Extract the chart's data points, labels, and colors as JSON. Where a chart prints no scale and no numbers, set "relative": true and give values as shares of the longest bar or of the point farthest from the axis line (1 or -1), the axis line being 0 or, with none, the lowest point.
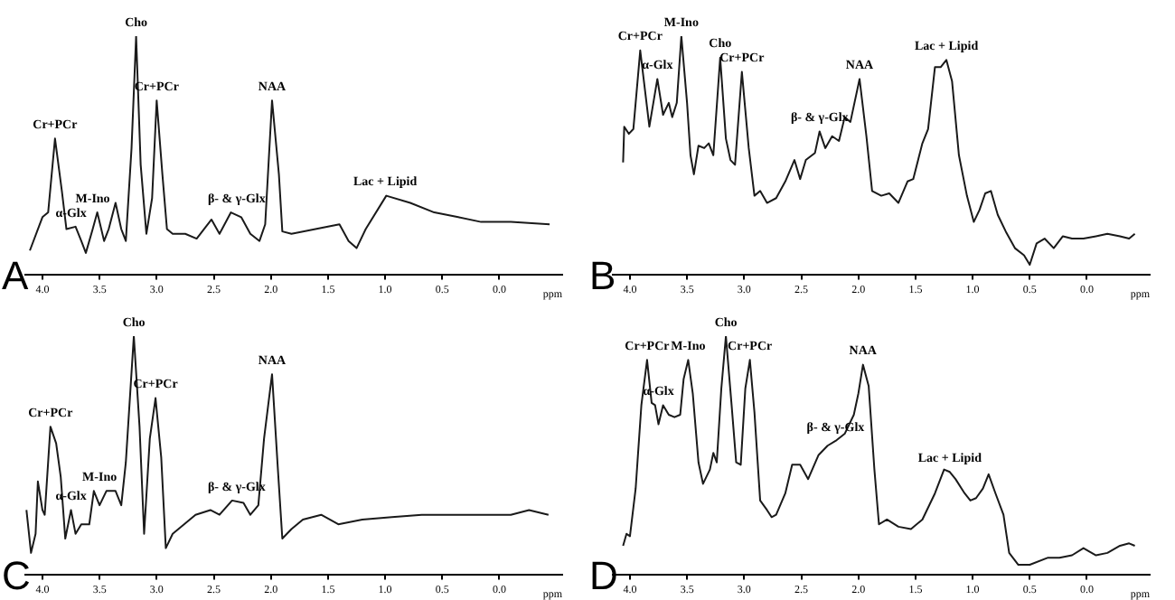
{
  "chart_data": [
    {
      "type": "line",
      "title": "A",
      "xlabel": "ppm",
      "relative": true,
      "marker": "none",
      "color": "#1a1a1a",
      "xlim": [
        4.15,
        -0.55
      ],
      "xticks": [
        {
          "value": 4,
          "label": "4.0"
        },
        {
          "value": 3.5,
          "label": "3.5"
        },
        {
          "value": 3,
          "label": "3.0"
        },
        {
          "value": 2.5,
          "label": "2.5"
        },
        {
          "value": 2,
          "label": "2.0"
        },
        {
          "value": 1.5,
          "label": "1.5"
        },
        {
          "value": 1,
          "label": "1.0"
        },
        {
          "value": 0.5,
          "label": "0.5"
        },
        {
          "value": 0,
          "label": "0.0"
        }
      ],
      "x": [
        4.11,
        4.0,
        3.95,
        3.89,
        3.83,
        3.79,
        3.71,
        3.66,
        3.62,
        3.56,
        3.52,
        3.46,
        3.42,
        3.36,
        3.31,
        3.27,
        3.22,
        3.18,
        3.14,
        3.09,
        3.04,
        3.0,
        2.95,
        2.91,
        2.86,
        2.75,
        2.65,
        2.52,
        2.45,
        2.35,
        2.26,
        2.18,
        2.1,
        2.05,
        1.99,
        1.93,
        1.9,
        1.82,
        1.61,
        1.4,
        1.32,
        1.25,
        1.17,
        0.99,
        0.78,
        0.57,
        0.36,
        0.16,
        -0.1,
        -0.44
      ],
      "values": [
        0.1,
        0.24,
        0.26,
        0.57,
        0.35,
        0.19,
        0.2,
        0.14,
        0.09,
        0.19,
        0.26,
        0.14,
        0.19,
        0.3,
        0.19,
        0.14,
        0.53,
        1.0,
        0.46,
        0.17,
        0.32,
        0.73,
        0.42,
        0.19,
        0.17,
        0.17,
        0.15,
        0.23,
        0.17,
        0.26,
        0.24,
        0.17,
        0.14,
        0.21,
        0.73,
        0.42,
        0.18,
        0.17,
        0.19,
        0.21,
        0.14,
        0.11,
        0.19,
        0.33,
        0.3,
        0.26,
        0.24,
        0.22,
        0.22,
        0.21
      ],
      "annotations": [
        {
          "text": "Cr+PCr",
          "x": 3.89,
          "y": 0.57
        },
        {
          "text": "α-Glx",
          "x": 3.75,
          "y": 0.2
        },
        {
          "text": "M-Ino",
          "x": 3.56,
          "y": 0.26
        },
        {
          "text": "Cho",
          "x": 3.18,
          "y": 1.0
        },
        {
          "text": "Cr+PCr",
          "x": 3.0,
          "y": 0.73
        },
        {
          "text": "β- & γ-Glx",
          "x": 2.3,
          "y": 0.26
        },
        {
          "text": "NAA",
          "x": 1.99,
          "y": 0.73
        },
        {
          "text": "Lac + Lipid",
          "x": 1.0,
          "y": 0.33
        }
      ]
    },
    {
      "type": "line",
      "title": "B",
      "xlabel": "ppm",
      "relative": true,
      "marker": "none",
      "color": "#1a1a1a",
      "xlim": [
        4.15,
        -0.55
      ],
      "xticks": [
        {
          "value": 4,
          "label": "4.0"
        },
        {
          "value": 3.5,
          "label": "3.5"
        },
        {
          "value": 3,
          "label": "3.0"
        },
        {
          "value": 2.5,
          "label": "2.5"
        },
        {
          "value": 2,
          "label": "2.0"
        },
        {
          "value": 1.5,
          "label": "1.5"
        },
        {
          "value": 1,
          "label": "1.0"
        },
        {
          "value": 0.5,
          "label": "0.5"
        },
        {
          "value": 0,
          "label": "0.0"
        }
      ],
      "x": [
        4.06,
        4.05,
        4.01,
        3.97,
        3.91,
        3.83,
        3.76,
        3.71,
        3.66,
        3.63,
        3.59,
        3.55,
        3.5,
        3.47,
        3.44,
        3.4,
        3.35,
        3.31,
        3.27,
        3.21,
        3.16,
        3.12,
        3.08,
        3.02,
        2.96,
        2.91,
        2.86,
        2.8,
        2.72,
        2.64,
        2.56,
        2.51,
        2.46,
        2.38,
        2.34,
        2.29,
        2.23,
        2.17,
        2.12,
        2.07,
        1.99,
        1.93,
        1.88,
        1.8,
        1.73,
        1.65,
        1.57,
        1.52,
        1.44,
        1.39,
        1.33,
        1.28,
        1.23,
        1.18,
        1.12,
        1.05,
        0.99,
        0.94,
        0.89,
        0.84,
        0.78,
        0.71,
        0.63,
        0.55,
        0.5,
        0.44,
        0.37,
        0.29,
        0.21,
        0.13,
        0.03,
        -0.08,
        -0.18,
        -0.29,
        -0.37,
        -0.42
      ],
      "values": [
        0.47,
        0.62,
        0.59,
        0.61,
        0.94,
        0.62,
        0.82,
        0.67,
        0.72,
        0.66,
        0.72,
        1.0,
        0.72,
        0.5,
        0.42,
        0.54,
        0.53,
        0.55,
        0.5,
        0.91,
        0.57,
        0.48,
        0.46,
        0.85,
        0.53,
        0.33,
        0.35,
        0.3,
        0.32,
        0.39,
        0.48,
        0.4,
        0.48,
        0.51,
        0.6,
        0.53,
        0.58,
        0.56,
        0.66,
        0.64,
        0.82,
        0.58,
        0.35,
        0.33,
        0.34,
        0.3,
        0.39,
        0.4,
        0.55,
        0.61,
        0.87,
        0.87,
        0.9,
        0.81,
        0.5,
        0.33,
        0.22,
        0.27,
        0.34,
        0.35,
        0.25,
        0.18,
        0.11,
        0.08,
        0.04,
        0.13,
        0.15,
        0.11,
        0.16,
        0.15,
        0.15,
        0.16,
        0.17,
        0.16,
        0.15,
        0.17
      ],
      "annotations": [
        {
          "text": "Cr+PCr",
          "x": 3.91,
          "y": 0.94
        },
        {
          "text": "α-Glx",
          "x": 3.76,
          "y": 0.82
        },
        {
          "text": "M-Ino",
          "x": 3.55,
          "y": 1.0
        },
        {
          "text": "Cho",
          "x": 3.21,
          "y": 0.91
        },
        {
          "text": "Cr+PCr",
          "x": 3.02,
          "y": 0.85
        },
        {
          "text": "β- & γ-Glx",
          "x": 2.34,
          "y": 0.6
        },
        {
          "text": "NAA",
          "x": 1.99,
          "y": 0.82
        },
        {
          "text": "Lac + Lipid",
          "x": 1.23,
          "y": 0.9
        }
      ]
    },
    {
      "type": "line",
      "title": "C",
      "xlabel": "ppm",
      "relative": true,
      "marker": "none",
      "color": "#1a1a1a",
      "xlim": [
        4.15,
        -0.55
      ],
      "xticks": [
        {
          "value": 4,
          "label": "4.0"
        },
        {
          "value": 3.5,
          "label": "3.5"
        },
        {
          "value": 3,
          "label": "3.0"
        },
        {
          "value": 2.5,
          "label": "2.5"
        },
        {
          "value": 2,
          "label": "2.0"
        },
        {
          "value": 1.5,
          "label": "1.5"
        },
        {
          "value": 1,
          "label": "1.0"
        },
        {
          "value": 0.5,
          "label": "0.5"
        },
        {
          "value": 0,
          "label": "0.0"
        }
      ],
      "x": [
        4.14,
        4.1,
        4.06,
        4.04,
        4.0,
        3.98,
        3.93,
        3.88,
        3.84,
        3.8,
        3.75,
        3.71,
        3.66,
        3.59,
        3.55,
        3.5,
        3.44,
        3.36,
        3.31,
        3.27,
        3.2,
        3.15,
        3.11,
        3.06,
        3.01,
        2.96,
        2.92,
        2.86,
        2.76,
        2.66,
        2.53,
        2.45,
        2.34,
        2.24,
        2.18,
        2.11,
        2.06,
        1.99,
        1.94,
        1.9,
        1.82,
        1.72,
        1.56,
        1.41,
        1.2,
        0.94,
        0.68,
        0.42,
        0.16,
        -0.1,
        -0.26,
        -0.43
      ],
      "values": [
        0.27,
        0.09,
        0.17,
        0.39,
        0.27,
        0.25,
        0.62,
        0.55,
        0.41,
        0.15,
        0.27,
        0.17,
        0.21,
        0.21,
        0.35,
        0.29,
        0.35,
        0.35,
        0.29,
        0.47,
        1.0,
        0.62,
        0.17,
        0.57,
        0.74,
        0.49,
        0.11,
        0.17,
        0.21,
        0.25,
        0.27,
        0.25,
        0.31,
        0.3,
        0.25,
        0.29,
        0.57,
        0.84,
        0.45,
        0.15,
        0.19,
        0.23,
        0.25,
        0.21,
        0.23,
        0.24,
        0.25,
        0.25,
        0.25,
        0.25,
        0.27,
        0.25
      ],
      "annotations": [
        {
          "text": "Cr+PCr",
          "x": 3.93,
          "y": 0.62
        },
        {
          "text": "α-Glx",
          "x": 3.75,
          "y": 0.27
        },
        {
          "text": "M-Ino",
          "x": 3.5,
          "y": 0.35
        },
        {
          "text": "Cho",
          "x": 3.2,
          "y": 1.0
        },
        {
          "text": "Cr+PCr",
          "x": 3.01,
          "y": 0.74
        },
        {
          "text": "β- & γ-Glx",
          "x": 2.3,
          "y": 0.31
        },
        {
          "text": "NAA",
          "x": 1.99,
          "y": 0.84
        }
      ]
    },
    {
      "type": "line",
      "title": "D",
      "xlabel": "ppm",
      "relative": true,
      "marker": "none",
      "color": "#1a1a1a",
      "xlim": [
        4.15,
        -0.55
      ],
      "xticks": [
        {
          "value": 4,
          "label": "4.0"
        },
        {
          "value": 3.5,
          "label": "3.5"
        },
        {
          "value": 3,
          "label": "3.0"
        },
        {
          "value": 2.5,
          "label": "2.5"
        },
        {
          "value": 2,
          "label": "2.0"
        },
        {
          "value": 1.5,
          "label": "1.5"
        },
        {
          "value": 1,
          "label": "1.0"
        },
        {
          "value": 0.5,
          "label": "0.5"
        },
        {
          "value": 0,
          "label": "0.0"
        }
      ],
      "x": [
        4.06,
        4.03,
        4.0,
        3.95,
        3.9,
        3.85,
        3.81,
        3.78,
        3.75,
        3.71,
        3.66,
        3.61,
        3.56,
        3.53,
        3.49,
        3.45,
        3.4,
        3.36,
        3.3,
        3.27,
        3.24,
        3.2,
        3.16,
        3.11,
        3.07,
        3.03,
        2.99,
        2.95,
        2.91,
        2.86,
        2.8,
        2.76,
        2.72,
        2.64,
        2.58,
        2.51,
        2.44,
        2.35,
        2.27,
        2.2,
        2.12,
        2.04,
        2.0,
        1.96,
        1.91,
        1.86,
        1.82,
        1.75,
        1.65,
        1.54,
        1.44,
        1.33,
        1.25,
        1.2,
        1.15,
        1.07,
        1.02,
        0.97,
        0.91,
        0.86,
        0.8,
        0.73,
        0.68,
        0.6,
        0.5,
        0.34,
        0.24,
        0.13,
        0.03,
        -0.08,
        -0.18,
        -0.29,
        -0.37,
        -0.42
      ],
      "values": [
        0.12,
        0.17,
        0.16,
        0.36,
        0.71,
        0.9,
        0.72,
        0.71,
        0.63,
        0.71,
        0.67,
        0.66,
        0.67,
        0.82,
        0.9,
        0.76,
        0.47,
        0.38,
        0.44,
        0.51,
        0.47,
        0.78,
        1.0,
        0.71,
        0.47,
        0.46,
        0.78,
        0.9,
        0.68,
        0.31,
        0.27,
        0.24,
        0.25,
        0.34,
        0.46,
        0.46,
        0.4,
        0.5,
        0.54,
        0.56,
        0.59,
        0.67,
        0.76,
        0.88,
        0.79,
        0.44,
        0.21,
        0.23,
        0.2,
        0.19,
        0.23,
        0.34,
        0.44,
        0.43,
        0.4,
        0.34,
        0.31,
        0.32,
        0.36,
        0.42,
        0.34,
        0.25,
        0.09,
        0.04,
        0.04,
        0.07,
        0.07,
        0.08,
        0.11,
        0.08,
        0.09,
        0.12,
        0.13,
        0.12
      ],
      "annotations": [
        {
          "text": "Cr+PCr",
          "x": 3.85,
          "y": 0.9
        },
        {
          "text": "α-Glx",
          "x": 3.75,
          "y": 0.71
        },
        {
          "text": "M-Ino",
          "x": 3.49,
          "y": 0.9
        },
        {
          "text": "Cho",
          "x": 3.16,
          "y": 1.0
        },
        {
          "text": "Cr+PCr",
          "x": 2.95,
          "y": 0.9
        },
        {
          "text": "β- & γ-Glx",
          "x": 2.2,
          "y": 0.56
        },
        {
          "text": "NAA",
          "x": 1.96,
          "y": 0.88
        },
        {
          "text": "Lac + Lipid",
          "x": 1.2,
          "y": 0.43
        }
      ]
    }
  ]
}
